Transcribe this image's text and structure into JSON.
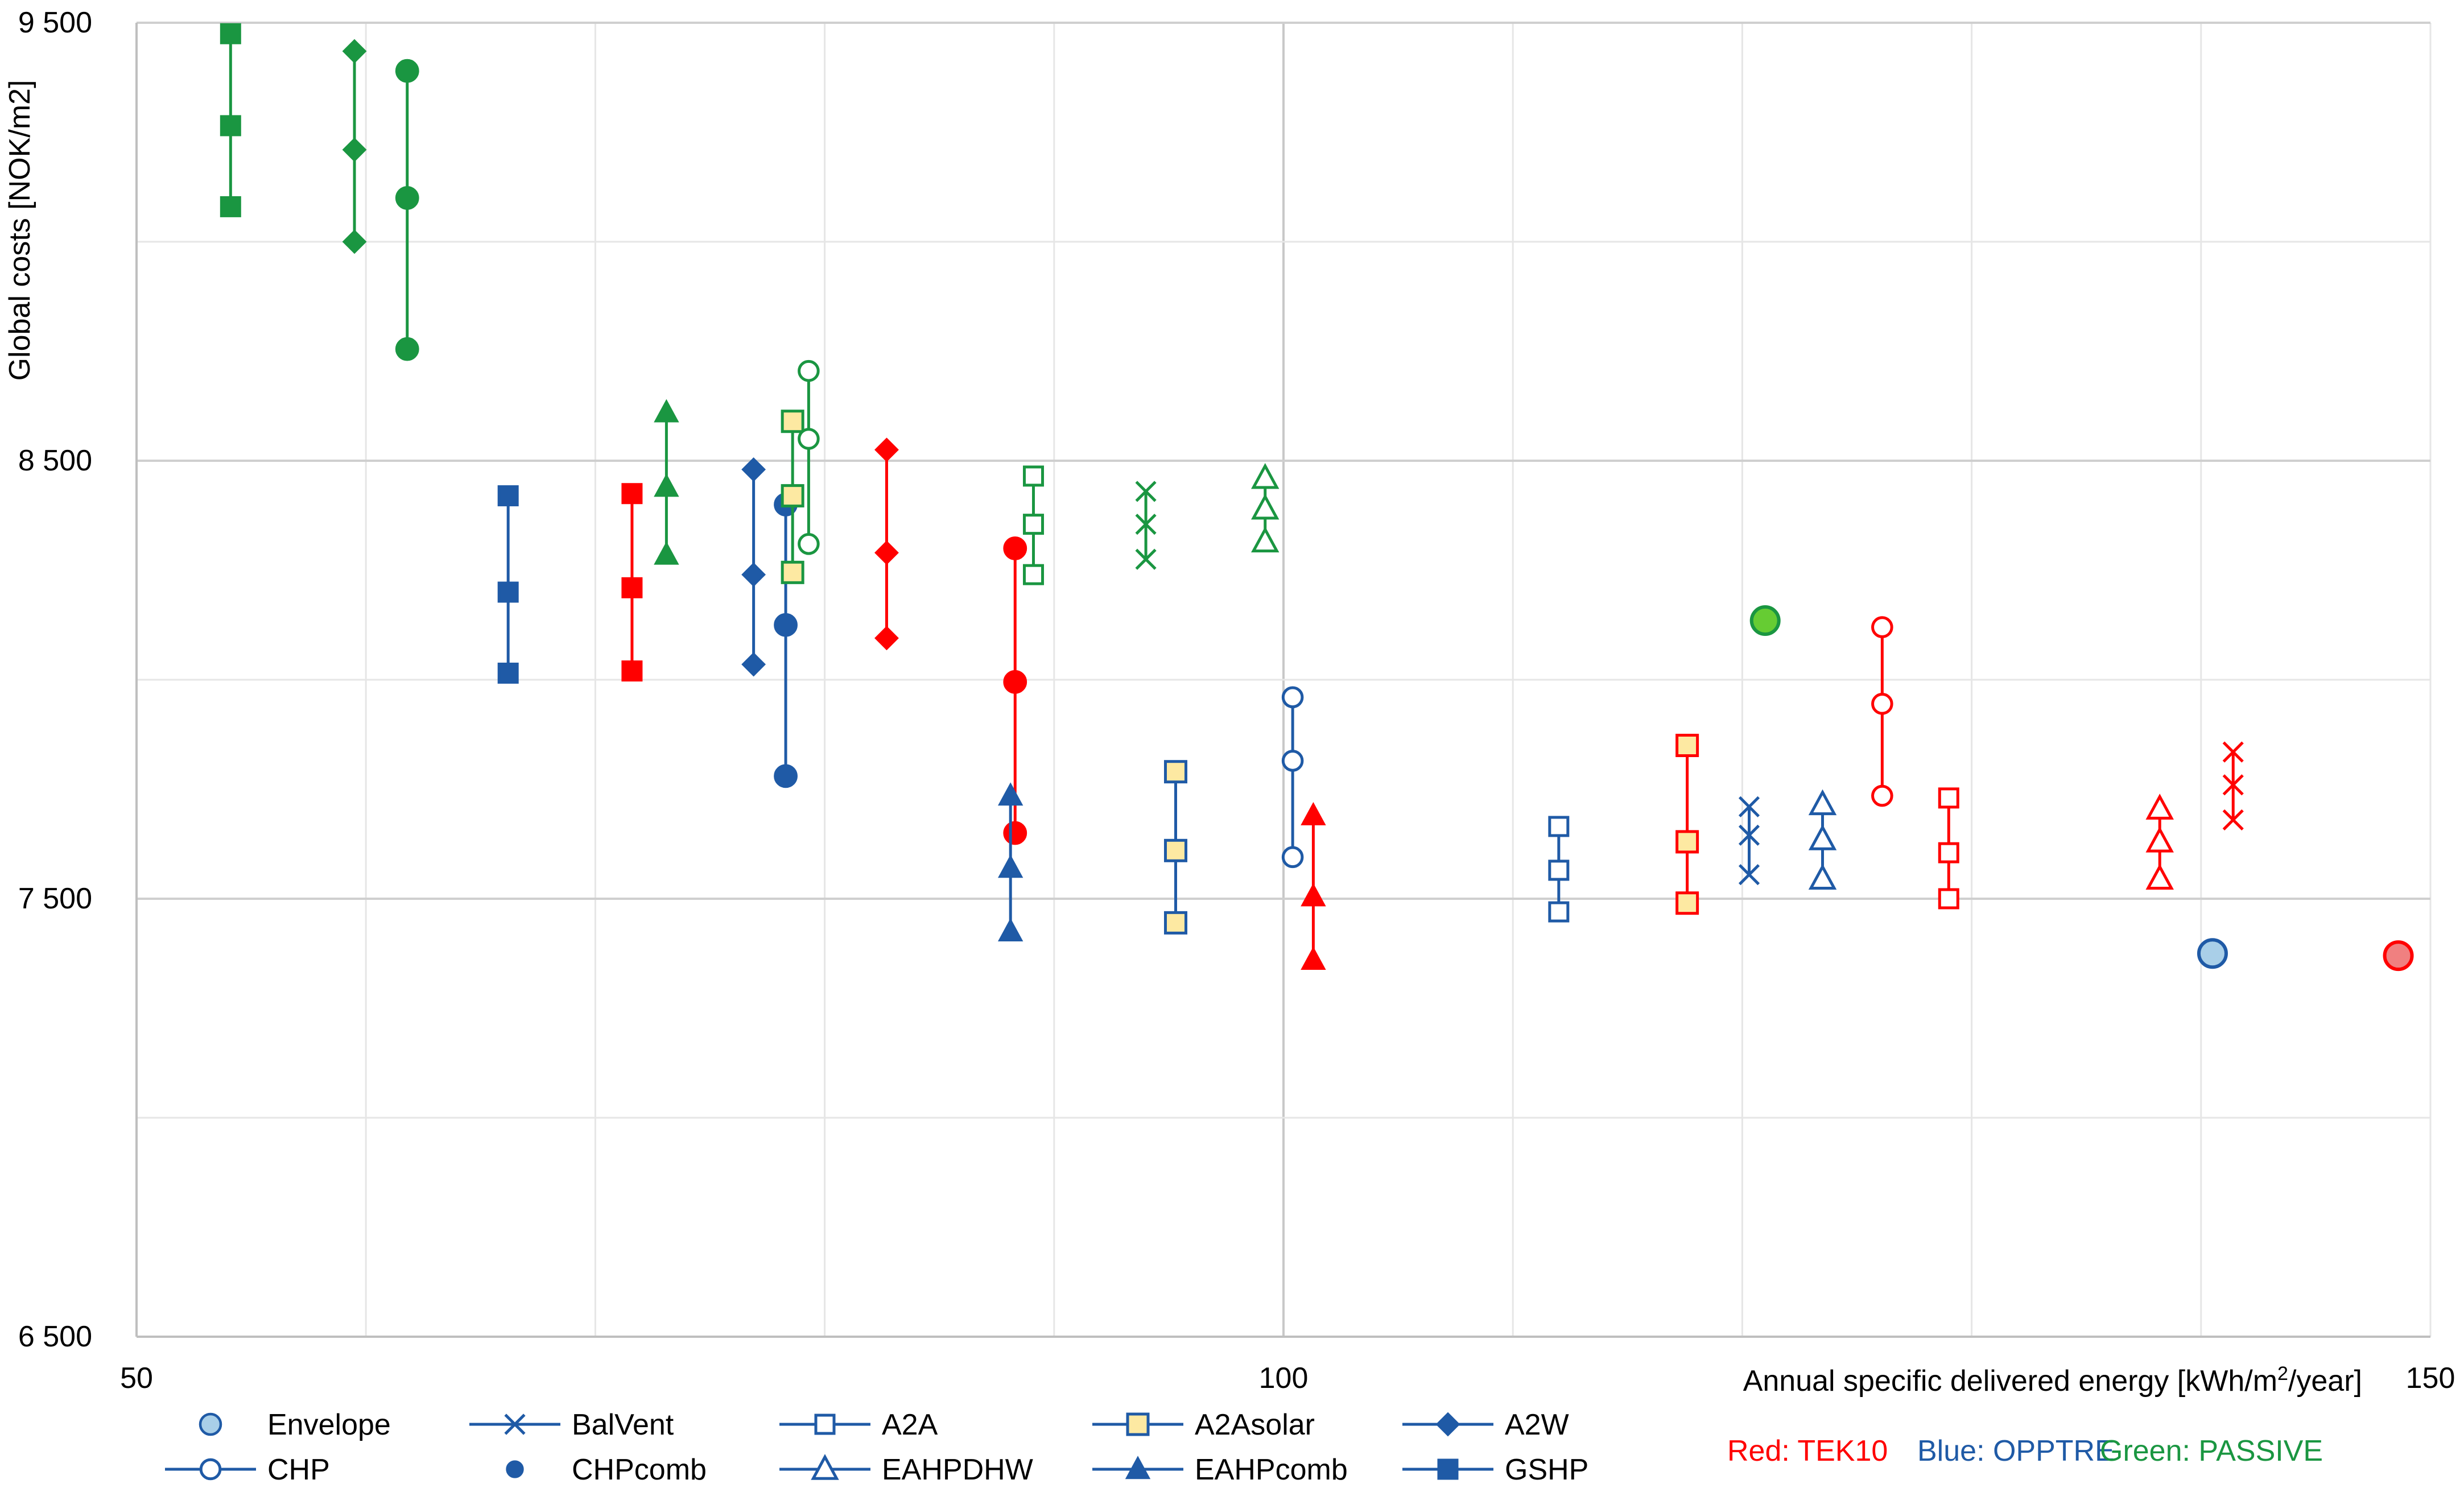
{
  "chart_data": {
    "type": "scatter",
    "title": "",
    "xlabel_prefix": "Annual specific delivered energy [kWh/m",
    "xlabel_sup1": "2",
    "xlabel_mid": "/year]",
    "ylabel": "Global costs [NOK/m2]",
    "xlim": [
      50,
      150
    ],
    "ylim": [
      6500,
      9500
    ],
    "x_ticks": [
      50,
      100,
      150
    ],
    "x_tick_labels": [
      "50",
      "100",
      "150"
    ],
    "y_ticks": [
      6500,
      7500,
      8500,
      9500
    ],
    "y_tick_labels": [
      "6 500",
      "7 500",
      "8 500",
      "9 500"
    ],
    "x_gridlines": [
      60,
      70,
      80,
      90,
      100,
      110,
      120,
      130,
      140,
      150
    ],
    "y_gridlines": [
      7000,
      7500,
      8000,
      8500,
      9000,
      9500
    ],
    "x_major_gridline": 100,
    "colors": {
      "red": "#ff0000",
      "blue": "#1f5aa6",
      "green": "#1a9641",
      "yellow_fill": "#fde9a2",
      "light_blue_fill": "#a9cfe8",
      "bright_green_fill": "#66cc33",
      "pink_fill": "#f08080",
      "grid": "#d9d9d9",
      "axis": "#bfbfbf"
    },
    "legend_items": [
      {
        "label": "Envelope",
        "marker": "circle-fill-lightblue"
      },
      {
        "label": "BalVent",
        "marker": "x"
      },
      {
        "label": "A2A",
        "marker": "square-open"
      },
      {
        "label": "A2Asolar",
        "marker": "square-yellow"
      },
      {
        "label": "A2W",
        "marker": "diamond-filled"
      },
      {
        "label": "CHP",
        "marker": "circle-open"
      },
      {
        "label": "CHPcomb",
        "marker": "circle-filled"
      },
      {
        "label": "EAHPDHW",
        "marker": "triangle-open"
      },
      {
        "label": "EAHPcomb",
        "marker": "triangle-filled"
      },
      {
        "label": "GSHP",
        "marker": "square-filled"
      }
    ],
    "color_key": [
      {
        "label": "Red: TEK10",
        "color": "#ff0000"
      },
      {
        "label": "Blue: OPPTRE",
        "color": "#1f5aa6"
      },
      {
        "label": "Green: PASSIVE",
        "color": "#1a9641"
      }
    ],
    "series": [
      {
        "name": "GSHP",
        "group": "PASSIVE",
        "marker": "square-filled",
        "color": "#1a9641",
        "x": 54.1,
        "y": [
          9475,
          9265,
          9080
        ]
      },
      {
        "name": "A2W",
        "group": "PASSIVE",
        "marker": "diamond-filled",
        "color": "#1a9641",
        "x": 59.5,
        "y": [
          9435,
          9210,
          9000
        ]
      },
      {
        "name": "CHPcomb",
        "group": "PASSIVE",
        "marker": "circle-filled",
        "color": "#1a9641",
        "x": 61.8,
        "y": [
          9390,
          9100,
          8755
        ]
      },
      {
        "name": "GSHP",
        "group": "OPPTRE",
        "marker": "square-filled",
        "color": "#1f5aa6",
        "x": 66.2,
        "y": [
          8420,
          8200,
          8015
        ]
      },
      {
        "name": "GSHP",
        "group": "TEK10",
        "marker": "square-filled",
        "color": "#ff0000",
        "x": 71.6,
        "y": [
          8425,
          8210,
          8020
        ]
      },
      {
        "name": "EAHPcomb",
        "group": "PASSIVE",
        "marker": "triangle-filled",
        "color": "#1a9641",
        "x": 73.1,
        "y": [
          8610,
          8440,
          8285
        ]
      },
      {
        "name": "A2W",
        "group": "OPPTRE",
        "marker": "diamond-filled",
        "color": "#1f5aa6",
        "x": 76.9,
        "y": [
          8480,
          8240,
          8035
        ]
      },
      {
        "name": "CHPcomb",
        "group": "OPPTRE",
        "marker": "circle-filled",
        "color": "#1f5aa6",
        "x": 78.3,
        "y": [
          8400,
          8125,
          7780
        ]
      },
      {
        "name": "A2Asolar",
        "group": "PASSIVE",
        "marker": "square-yellow",
        "color": "#1a9641",
        "x": 78.6,
        "y": [
          8590,
          8420,
          8245
        ]
      },
      {
        "name": "CHP",
        "group": "PASSIVE",
        "marker": "circle-open",
        "color": "#1a9641",
        "x": 79.3,
        "y": [
          8705,
          8550,
          8310
        ]
      },
      {
        "name": "A2W",
        "group": "TEK10",
        "marker": "diamond-filled",
        "color": "#ff0000",
        "x": 82.7,
        "y": [
          8525,
          8290,
          8095
        ]
      },
      {
        "name": "CHPcomb",
        "group": "TEK10",
        "marker": "circle-filled",
        "color": "#ff0000",
        "x": 88.3,
        "y": [
          8300,
          7995,
          7650
        ]
      },
      {
        "name": "EAHPcomb",
        "group": "OPPTRE",
        "marker": "triangle-filled",
        "color": "#1f5aa6",
        "x": 88.1,
        "y": [
          7735,
          7570,
          7425
        ]
      },
      {
        "name": "A2A",
        "group": "PASSIVE",
        "marker": "square-open",
        "color": "#1a9641",
        "x": 89.1,
        "y": [
          8465,
          8355,
          8240
        ]
      },
      {
        "name": "BalVent",
        "group": "PASSIVE",
        "marker": "x",
        "color": "#1a9641",
        "x": 94.0,
        "y": [
          8430,
          8355,
          8275
        ]
      },
      {
        "name": "A2Asolar",
        "group": "OPPTRE",
        "marker": "square-yellow",
        "color": "#1f5aa6",
        "x": 95.3,
        "y": [
          7790,
          7610,
          7445
        ]
      },
      {
        "name": "EAHPDHW",
        "group": "PASSIVE",
        "marker": "triangle-open",
        "color": "#1a9641",
        "x": 99.2,
        "y": [
          8460,
          8390,
          8315
        ]
      },
      {
        "name": "CHP",
        "group": "OPPTRE",
        "marker": "circle-open",
        "color": "#1f5aa6",
        "x": 100.4,
        "y": [
          7960,
          7815,
          7595
        ]
      },
      {
        "name": "EAHPcomb",
        "group": "TEK10",
        "marker": "triangle-filled",
        "color": "#ff0000",
        "x": 101.3,
        "y": [
          7690,
          7505,
          7360
        ]
      },
      {
        "name": "A2A",
        "group": "OPPTRE",
        "marker": "square-open",
        "color": "#1f5aa6",
        "x": 112.0,
        "y": [
          7665,
          7565,
          7470
        ]
      },
      {
        "name": "A2Asolar",
        "group": "TEK10",
        "marker": "square-yellow",
        "color": "#ff0000",
        "x": 117.6,
        "y": [
          7850,
          7630,
          7490
        ]
      },
      {
        "name": "BalVent",
        "group": "OPPTRE",
        "marker": "x",
        "color": "#1f5aa6",
        "x": 120.3,
        "y": [
          7710,
          7645,
          7555
        ]
      },
      {
        "name": "Envelope",
        "group": "PASSIVE",
        "marker": "circle-fill-green",
        "color": "#1a9641",
        "x": 121.0,
        "y": [
          8135
        ]
      },
      {
        "name": "EAHPDHW",
        "group": "OPPTRE",
        "marker": "triangle-open",
        "color": "#1f5aa6",
        "x": 123.5,
        "y": [
          7715,
          7635,
          7545
        ]
      },
      {
        "name": "CHP",
        "group": "TEK10",
        "marker": "circle-open",
        "color": "#ff0000",
        "x": 126.1,
        "y": [
          8120,
          7945,
          7735
        ]
      },
      {
        "name": "A2A",
        "group": "TEK10",
        "marker": "square-open",
        "color": "#ff0000",
        "x": 129.0,
        "y": [
          7730,
          7605,
          7500
        ]
      },
      {
        "name": "EAHPDHW",
        "group": "TEK10",
        "marker": "triangle-open",
        "color": "#ff0000",
        "x": 138.2,
        "y": [
          7705,
          7630,
          7545
        ]
      },
      {
        "name": "Envelope",
        "group": "OPPTRE",
        "marker": "circle-fill-lightblue",
        "color": "#1f5aa6",
        "x": 140.5,
        "y": [
          7375
        ]
      },
      {
        "name": "BalVent",
        "group": "TEK10",
        "marker": "x",
        "color": "#ff0000",
        "x": 141.4,
        "y": [
          7835,
          7760,
          7680
        ]
      },
      {
        "name": "Envelope",
        "group": "TEK10",
        "marker": "circle-fill-pink",
        "color": "#ff0000",
        "x": 148.6,
        "y": [
          7370
        ]
      }
    ]
  }
}
